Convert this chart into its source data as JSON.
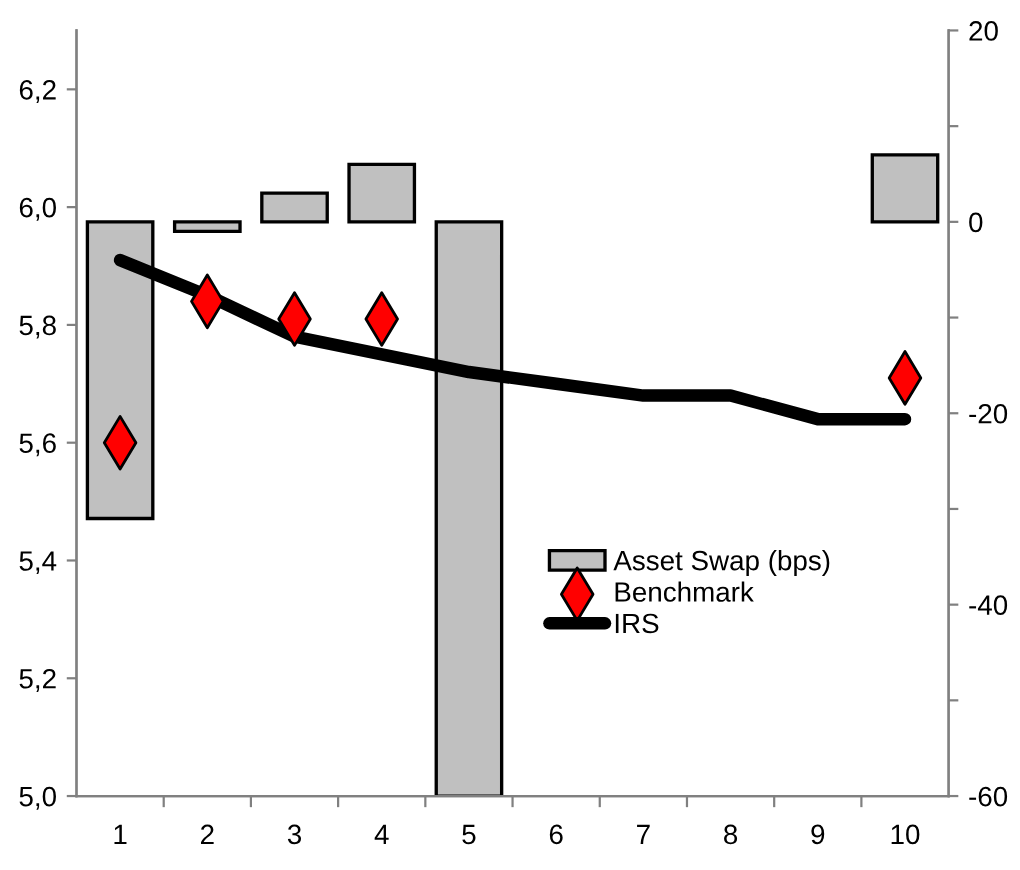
{
  "chart_data": {
    "type": "bar",
    "categories": [
      "1",
      "2",
      "3",
      "4",
      "5",
      "6",
      "7",
      "8",
      "9",
      "10"
    ],
    "series": [
      {
        "name": "Asset Swap (bps)",
        "axis": "y2",
        "color": "#c0c0c0",
        "values": [
          -31,
          -1,
          3,
          6,
          -60,
          null,
          null,
          null,
          null,
          7
        ]
      },
      {
        "name": "Benchmark",
        "type": "scatter",
        "color": "#ff0000",
        "marker": "diamond",
        "values": [
          5.6,
          5.84,
          5.81,
          5.81,
          null,
          null,
          null,
          null,
          null,
          5.71
        ]
      },
      {
        "name": "IRS",
        "type": "line",
        "color": "#000000",
        "marker": "none",
        "line_style": "solid",
        "values": [
          5.91,
          5.85,
          5.78,
          5.75,
          5.72,
          5.7,
          5.68,
          5.68,
          5.64,
          5.64
        ]
      }
    ],
    "ylim": [
      5.0,
      6.3
    ],
    "yticks": [
      {
        "value": 5.0,
        "label": "5,0"
      },
      {
        "value": 5.2,
        "label": "5,2"
      },
      {
        "value": 5.4,
        "label": "5,4"
      },
      {
        "value": 5.6,
        "label": "5,6"
      },
      {
        "value": 5.8,
        "label": "5,8"
      },
      {
        "value": 6.0,
        "label": "6,0"
      },
      {
        "value": 6.2,
        "label": "6,2"
      }
    ],
    "y2lim": [
      -60,
      20
    ],
    "y2ticks": [
      -60,
      {
        "value": -50,
        "label": null
      },
      -40,
      {
        "value": -30,
        "label": null
      },
      -20,
      {
        "value": -10,
        "label": null
      },
      0,
      {
        "value": 10,
        "label": null
      },
      20
    ],
    "grid": false,
    "legend": "bottom right"
  }
}
